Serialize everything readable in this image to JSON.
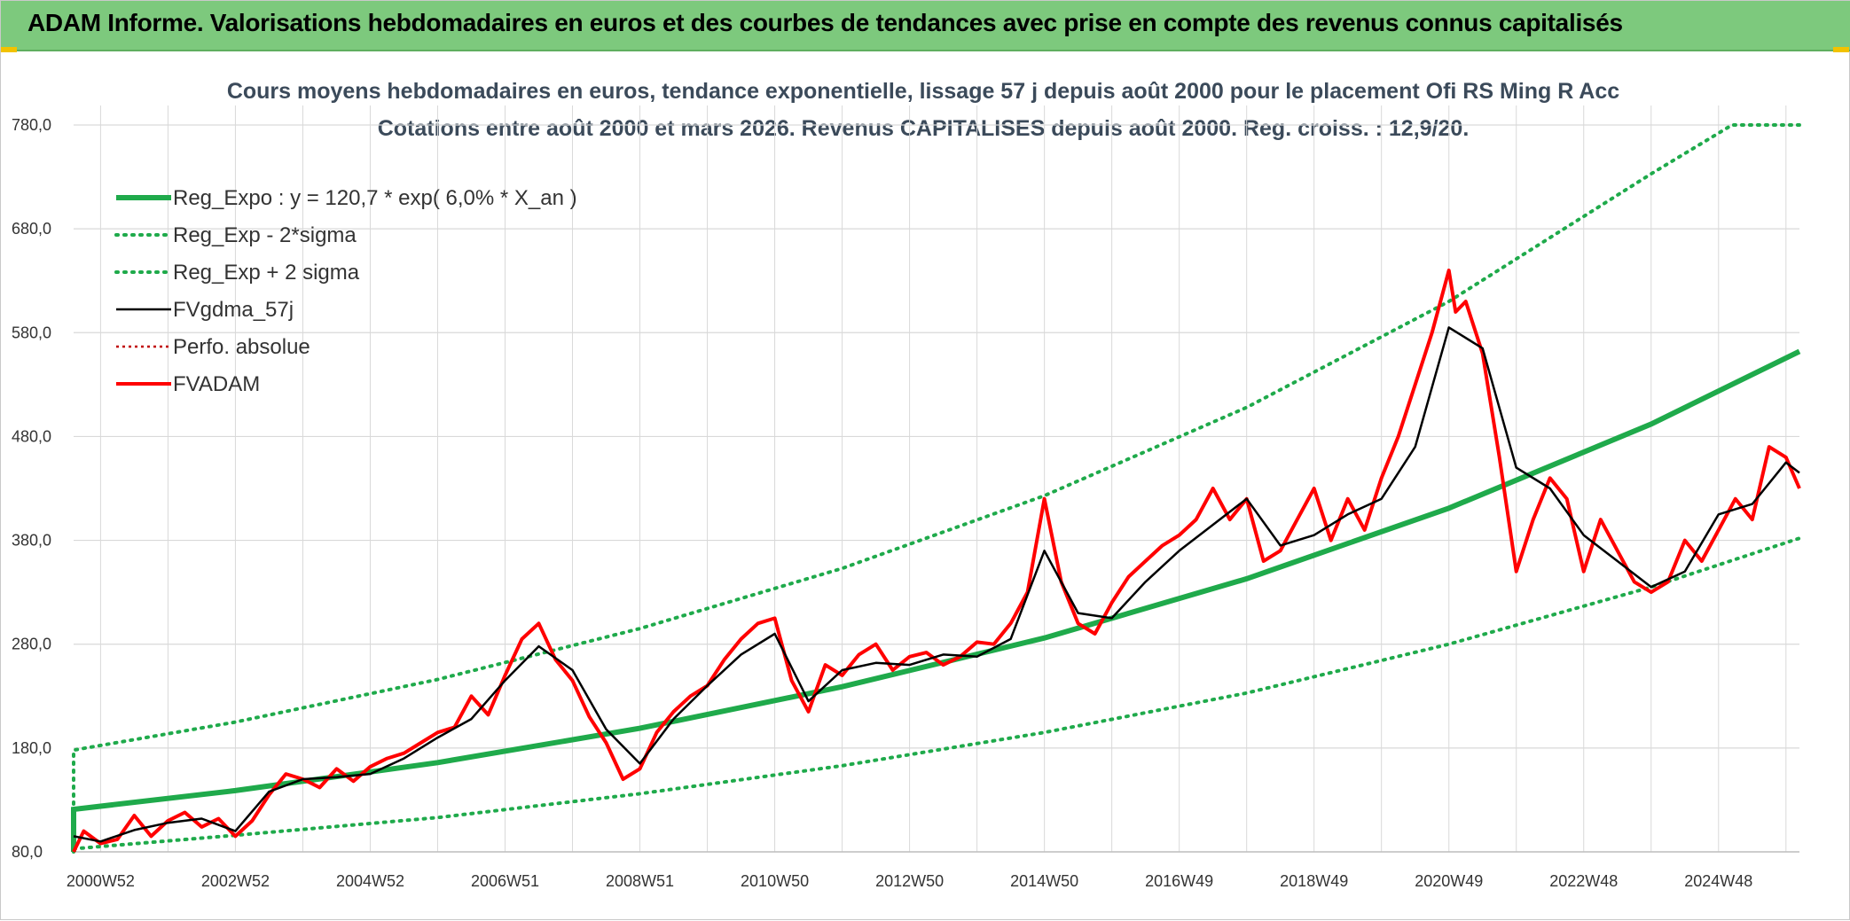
{
  "header": {
    "title": "ADAM Informe. Valorisations hebdomadaires en euros et des courbes de tendances avec prise en compte des revenus connus capitalisés"
  },
  "chart_data": {
    "type": "line",
    "title": "Cours moyens hebdomadaires en euros, tendance exponentielle, lissage 57 j depuis août 2000 pour le placement Ofi RS Ming R Acc",
    "subtitle": "Cotations entre août 2000 et mars 2026. Revenus CAPITALISES depuis août 2000. Reg. croiss. : 12,9/20.",
    "xlabel": "",
    "ylabel": "",
    "ylim": [
      80,
      780
    ],
    "xlim": [
      2000.6,
      2026.2
    ],
    "y_ticks": [
      "80,0",
      "180,0",
      "280,0",
      "380,0",
      "480,0",
      "580,0",
      "680,0",
      "780,0"
    ],
    "y_tick_values": [
      80,
      180,
      280,
      380,
      480,
      580,
      680,
      780
    ],
    "x_ticks": [
      "2000W52",
      "2002W52",
      "2004W52",
      "2006W51",
      "2008W51",
      "2010W50",
      "2012W50",
      "2014W50",
      "2016W49",
      "2018W49",
      "2020W49",
      "2022W48",
      "2024W48"
    ],
    "x_tick_values": [
      2001,
      2003,
      2005,
      2007,
      2009,
      2011,
      2013,
      2015,
      2017,
      2019,
      2021,
      2023,
      2025
    ],
    "grid": true,
    "legend_position": "top-left",
    "colors": {
      "reg_expo": "#1faa4b",
      "sigma": "#1faa4b",
      "smooth": "#000000",
      "perfo": "#c00000",
      "fvadam": "#ff0000",
      "grid": "#d9d9d9"
    },
    "series": [
      {
        "name": "Reg_Expo : y = 120,7 * exp( 6,0% *  X_an )",
        "style": "solid-thick",
        "x": [
          2000.6,
          2003,
          2006,
          2009,
          2012,
          2015,
          2018,
          2021,
          2024,
          2026.2
        ],
        "y": [
          121,
          139,
          166,
          199,
          239,
          286,
          343,
          411,
          492,
          562
        ]
      },
      {
        "name": "Reg_Exp - 2*sigma",
        "style": "dotted",
        "x": [
          2000.6,
          2003,
          2006,
          2009,
          2012,
          2015,
          2018,
          2021,
          2024,
          2026.2
        ],
        "y": [
          83,
          96,
          113,
          136,
          163,
          195,
          233,
          280,
          335,
          382
        ]
      },
      {
        "name": "Reg_Exp + 2 sigma",
        "style": "dotted",
        "x": [
          2000.6,
          2003,
          2006,
          2009,
          2012,
          2015,
          2018,
          2021,
          2024,
          2025.2,
          2026.2
        ],
        "y": [
          178,
          205,
          246,
          295,
          353,
          423,
          508,
          610,
          733,
          780,
          780
        ]
      },
      {
        "name": "FVgdma_57j",
        "style": "solid",
        "x": [
          2000.6,
          2001.0,
          2001.5,
          2002.0,
          2002.5,
          2003.0,
          2003.5,
          2004.0,
          2004.5,
          2005.0,
          2005.5,
          2006.0,
          2006.5,
          2007.0,
          2007.5,
          2008.0,
          2008.5,
          2009.0,
          2009.5,
          2010.0,
          2010.5,
          2011.0,
          2011.5,
          2012.0,
          2012.5,
          2013.0,
          2013.5,
          2014.0,
          2014.5,
          2015.0,
          2015.5,
          2016.0,
          2016.5,
          2017.0,
          2017.5,
          2018.0,
          2018.5,
          2019.0,
          2019.5,
          2020.0,
          2020.5,
          2021.0,
          2021.5,
          2022.0,
          2022.5,
          2023.0,
          2023.5,
          2024.0,
          2024.5,
          2025.0,
          2025.5,
          2026.0,
          2026.2
        ],
        "y": [
          95,
          90,
          101,
          108,
          112,
          100,
          138,
          150,
          152,
          155,
          170,
          190,
          208,
          245,
          278,
          255,
          198,
          165,
          208,
          240,
          270,
          290,
          225,
          255,
          262,
          260,
          270,
          268,
          285,
          370,
          310,
          305,
          340,
          370,
          395,
          420,
          375,
          385,
          405,
          420,
          470,
          585,
          565,
          450,
          430,
          385,
          360,
          335,
          350,
          405,
          415,
          455,
          445
        ]
      },
      {
        "name": "Perfo. absolue",
        "style": "dotted-thin",
        "x": [],
        "y": []
      },
      {
        "name": "FVADAM",
        "style": "solid-thick",
        "x": [
          2000.6,
          2000.75,
          2001.0,
          2001.25,
          2001.5,
          2001.75,
          2002.0,
          2002.25,
          2002.5,
          2002.75,
          2003.0,
          2003.25,
          2003.5,
          2003.75,
          2004.0,
          2004.25,
          2004.5,
          2004.75,
          2005.0,
          2005.25,
          2005.5,
          2005.75,
          2006.0,
          2006.25,
          2006.5,
          2006.75,
          2007.0,
          2007.25,
          2007.5,
          2007.75,
          2008.0,
          2008.25,
          2008.5,
          2008.75,
          2009.0,
          2009.25,
          2009.5,
          2009.75,
          2010.0,
          2010.25,
          2010.5,
          2010.75,
          2011.0,
          2011.25,
          2011.5,
          2011.75,
          2012.0,
          2012.25,
          2012.5,
          2012.75,
          2013.0,
          2013.25,
          2013.5,
          2013.75,
          2014.0,
          2014.25,
          2014.5,
          2014.75,
          2015.0,
          2015.25,
          2015.5,
          2015.75,
          2016.0,
          2016.25,
          2016.5,
          2016.75,
          2017.0,
          2017.25,
          2017.5,
          2017.75,
          2018.0,
          2018.25,
          2018.5,
          2018.75,
          2019.0,
          2019.25,
          2019.5,
          2019.75,
          2020.0,
          2020.25,
          2020.5,
          2020.75,
          2021.0,
          2021.1,
          2021.25,
          2021.5,
          2021.75,
          2022.0,
          2022.25,
          2022.5,
          2022.75,
          2023.0,
          2023.25,
          2023.5,
          2023.75,
          2024.0,
          2024.25,
          2024.5,
          2024.75,
          2025.0,
          2025.25,
          2025.5,
          2025.75,
          2026.0,
          2026.2
        ],
        "y": [
          80,
          100,
          88,
          92,
          115,
          95,
          110,
          118,
          104,
          112,
          95,
          110,
          135,
          155,
          150,
          142,
          160,
          148,
          162,
          170,
          175,
          185,
          195,
          200,
          230,
          212,
          250,
          285,
          300,
          265,
          245,
          210,
          185,
          150,
          160,
          195,
          215,
          230,
          240,
          265,
          285,
          300,
          305,
          245,
          215,
          260,
          250,
          270,
          280,
          255,
          268,
          272,
          260,
          268,
          282,
          280,
          300,
          330,
          420,
          340,
          300,
          290,
          320,
          345,
          360,
          375,
          385,
          400,
          430,
          400,
          420,
          360,
          370,
          400,
          430,
          380,
          420,
          390,
          440,
          480,
          530,
          580,
          640,
          600,
          610,
          560,
          460,
          350,
          400,
          440,
          420,
          350,
          400,
          370,
          340,
          330,
          340,
          380,
          360,
          390,
          420,
          400,
          470,
          460,
          430
        ]
      }
    ]
  }
}
